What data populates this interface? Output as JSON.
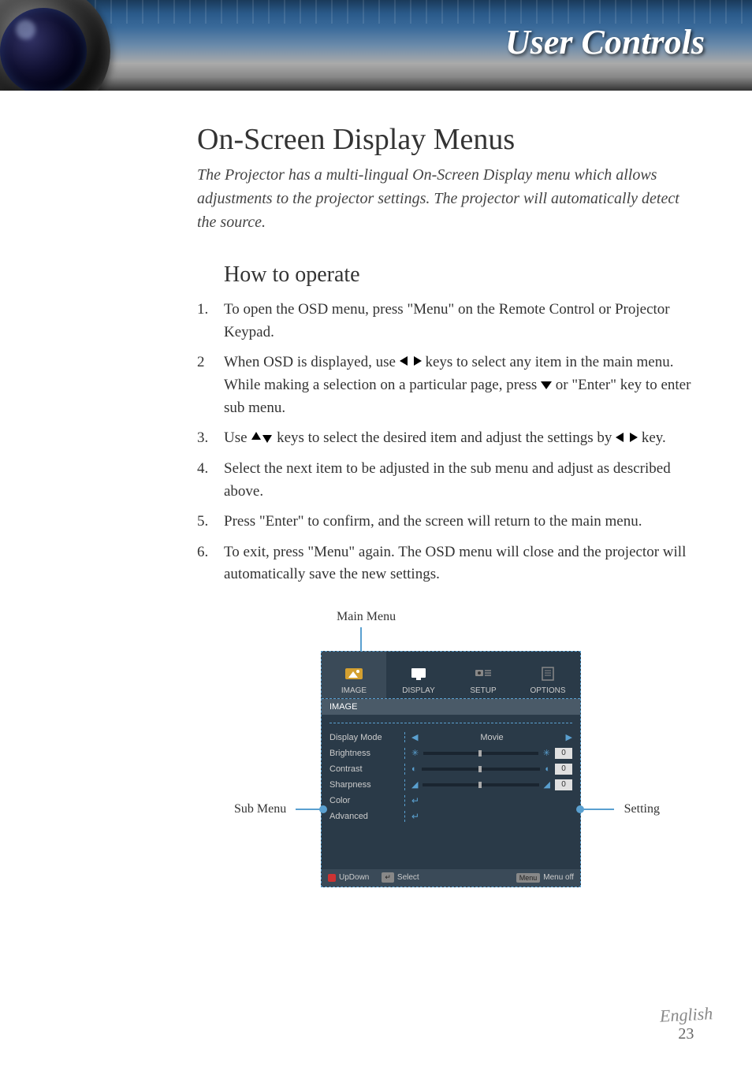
{
  "banner": {
    "title": "User Controls"
  },
  "heading": "On-Screen Display Menus",
  "intro": "The Projector has a multi-lingual On-Screen Display menu which allows adjustments to the projector settings. The projector will automatically detect the source.",
  "subheading": "How to operate",
  "steps": [
    {
      "num": "1.",
      "before": "To open the OSD menu, press \"Menu\" on the Remote Control or Projector Keypad.",
      "icon": null,
      "after": ""
    },
    {
      "num": "2",
      "before": "When OSD is displayed, use ",
      "icon": "lr",
      "mid": " keys to select any item in the main menu. While making a selection on a particular page, press ",
      "icon2": "down",
      "after": " or \"Enter\" key to enter sub menu."
    },
    {
      "num": "3.",
      "before": "Use ",
      "icon": "ud",
      "mid": " keys to select the desired item and adjust the settings by ",
      "icon2": "lr",
      "after": " key."
    },
    {
      "num": "4.",
      "before": "Select the next item to be adjusted in the sub menu and adjust as described above.",
      "icon": null,
      "after": ""
    },
    {
      "num": "5.",
      "before": "Press \"Enter\" to confirm, and the screen will return to the main menu.",
      "icon": null,
      "after": ""
    },
    {
      "num": "6.",
      "before": "To exit, press \"Menu\" again. The OSD menu will close and the projector will automatically save the new settings.",
      "icon": null,
      "after": ""
    }
  ],
  "figure": {
    "mainMenuLabel": "Main Menu",
    "subMenuLabel": "Sub Menu",
    "settingLabel": "Setting",
    "tabs": [
      "IMAGE",
      "DISPLAY",
      "SETUP",
      "OPTIONS"
    ],
    "activeTab": "IMAGE",
    "sectionTitle": "IMAGE",
    "rows": [
      {
        "label": "Display Mode",
        "type": "select",
        "value": "Movie"
      },
      {
        "label": "Brightness",
        "type": "slider",
        "value": "0",
        "icon": "sun"
      },
      {
        "label": "Contrast",
        "type": "slider",
        "value": "0",
        "icon": "circle"
      },
      {
        "label": "Sharpness",
        "type": "slider",
        "value": "0",
        "icon": "tri"
      },
      {
        "label": "Color",
        "type": "enter"
      },
      {
        "label": "Advanced",
        "type": "enter"
      }
    ],
    "footer": {
      "updown": "UpDown",
      "select": "Select",
      "menuKey": "Menu",
      "menuOff": "Menu off"
    }
  },
  "footer": {
    "language": "English",
    "page": "23"
  },
  "colors": {
    "bannerGradTop": "#1a3a5a",
    "headerText": "#ffffff",
    "bodyText": "#333333",
    "osdBg": "#2a3a48",
    "osdAccent": "#5aa0d0",
    "osdText": "#cccccc"
  }
}
